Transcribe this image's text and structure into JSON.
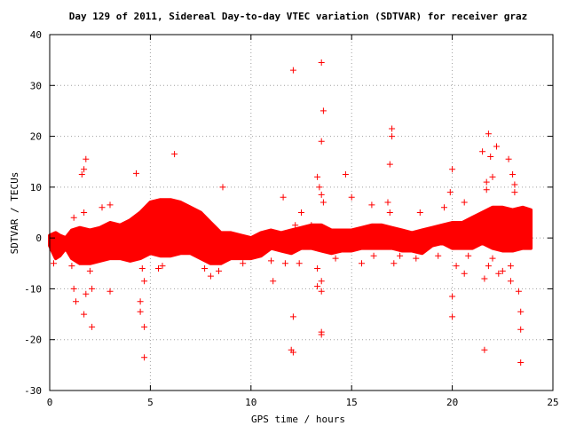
{
  "chart_data": {
    "type": "scatter",
    "title": "Day 129 of 2011, Sidereal Day-to-day VTEC variation (SDTVAR) for receiver graz",
    "xlabel": "GPS time / hours",
    "ylabel": "SDTVAR / TECUs",
    "xlim": [
      0,
      25
    ],
    "ylim": [
      -30,
      40
    ],
    "x_ticks": [
      0,
      5,
      10,
      15,
      20,
      25
    ],
    "y_ticks": [
      -30,
      -20,
      -10,
      0,
      10,
      20,
      30,
      40
    ],
    "grid": true,
    "legend": "none",
    "marker": "+",
    "color": "#ff0000",
    "band": [
      [
        0.0,
        -1.5,
        0.5
      ],
      [
        0.3,
        -4.0,
        1.0
      ],
      [
        0.5,
        -3.5,
        0.5
      ],
      [
        0.8,
        -2.0,
        0.0
      ],
      [
        1.1,
        -4.0,
        1.5
      ],
      [
        1.5,
        -5.0,
        2.0
      ],
      [
        2.0,
        -5.0,
        1.5
      ],
      [
        2.5,
        -4.5,
        2.0
      ],
      [
        3.0,
        -4.0,
        3.0
      ],
      [
        3.5,
        -4.0,
        2.5
      ],
      [
        4.0,
        -4.5,
        3.5
      ],
      [
        4.5,
        -4.0,
        5.0
      ],
      [
        5.0,
        -3.0,
        7.0
      ],
      [
        5.5,
        -3.5,
        7.5
      ],
      [
        6.0,
        -3.5,
        7.5
      ],
      [
        6.5,
        -3.0,
        7.0
      ],
      [
        7.0,
        -3.0,
        6.0
      ],
      [
        7.5,
        -4.0,
        5.0
      ],
      [
        8.0,
        -5.0,
        3.0
      ],
      [
        8.5,
        -5.0,
        1.0
      ],
      [
        9.0,
        -4.0,
        1.0
      ],
      [
        9.5,
        -4.0,
        0.5
      ],
      [
        10.0,
        -4.0,
        0.0
      ],
      [
        10.5,
        -3.5,
        1.0
      ],
      [
        11.0,
        -2.0,
        1.5
      ],
      [
        11.5,
        -2.5,
        1.0
      ],
      [
        12.0,
        -3.0,
        1.5
      ],
      [
        12.5,
        -2.0,
        2.0
      ],
      [
        13.0,
        -2.0,
        2.5
      ],
      [
        13.5,
        -2.5,
        2.5
      ],
      [
        14.0,
        -3.0,
        1.5
      ],
      [
        14.5,
        -2.5,
        1.5
      ],
      [
        15.0,
        -2.5,
        1.5
      ],
      [
        15.5,
        -2.0,
        2.0
      ],
      [
        16.0,
        -2.0,
        2.5
      ],
      [
        16.5,
        -2.0,
        2.5
      ],
      [
        17.0,
        -2.0,
        2.0
      ],
      [
        17.5,
        -2.5,
        1.5
      ],
      [
        18.0,
        -2.5,
        1.0
      ],
      [
        18.5,
        -3.0,
        1.5
      ],
      [
        19.0,
        -1.5,
        2.0
      ],
      [
        19.5,
        -1.0,
        2.5
      ],
      [
        20.0,
        -2.0,
        3.0
      ],
      [
        20.5,
        -2.0,
        3.0
      ],
      [
        21.0,
        -2.0,
        4.0
      ],
      [
        21.5,
        -1.0,
        5.0
      ],
      [
        22.0,
        -2.0,
        6.0
      ],
      [
        22.5,
        -2.5,
        6.0
      ],
      [
        23.0,
        -2.5,
        5.5
      ],
      [
        23.5,
        -2.0,
        6.0
      ],
      [
        23.9,
        -2.0,
        5.5
      ]
    ],
    "dips": [
      [
        0.2,
        -5.0
      ],
      [
        1.1,
        -5.5
      ],
      [
        2.0,
        -6.5
      ],
      [
        4.6,
        -6.0
      ],
      [
        5.4,
        -6.0
      ],
      [
        5.6,
        -5.5
      ],
      [
        7.7,
        -6.0
      ],
      [
        8.4,
        -6.5
      ],
      [
        9.6,
        -5.0
      ],
      [
        11.0,
        -4.5
      ],
      [
        12.4,
        -5.0
      ],
      [
        13.3,
        -6.0
      ],
      [
        14.2,
        -4.0
      ],
      [
        17.4,
        -3.5
      ],
      [
        18.2,
        -4.0
      ],
      [
        19.3,
        -3.5
      ],
      [
        20.8,
        -3.5
      ],
      [
        21.8,
        -5.5
      ],
      [
        22.3,
        -7.0
      ],
      [
        22.5,
        -6.5
      ],
      [
        22.9,
        -5.5
      ]
    ],
    "outliers": [
      [
        1.2,
        -10.0
      ],
      [
        1.3,
        -12.5
      ],
      [
        1.6,
        12.5
      ],
      [
        1.7,
        13.5
      ],
      [
        1.8,
        15.5
      ],
      [
        1.7,
        5.0
      ],
      [
        1.8,
        -11.0
      ],
      [
        1.7,
        -15.0
      ],
      [
        1.2,
        4.0
      ],
      [
        2.1,
        -17.5
      ],
      [
        2.1,
        -10.0
      ],
      [
        2.6,
        6.0
      ],
      [
        3.0,
        -10.5
      ],
      [
        3.0,
        6.5
      ],
      [
        4.3,
        12.7
      ],
      [
        4.5,
        -12.5
      ],
      [
        4.5,
        -14.5
      ],
      [
        4.7,
        -17.5
      ],
      [
        4.7,
        -23.5
      ],
      [
        4.7,
        -8.5
      ],
      [
        6.2,
        16.5
      ],
      [
        8.0,
        -7.5
      ],
      [
        8.6,
        10.0
      ],
      [
        11.1,
        -8.5
      ],
      [
        11.6,
        8.0
      ],
      [
        11.7,
        -5.0
      ],
      [
        12.1,
        33.0
      ],
      [
        12.0,
        -22.0
      ],
      [
        12.1,
        -22.5
      ],
      [
        12.1,
        -15.5
      ],
      [
        12.2,
        2.5
      ],
      [
        12.5,
        5.0
      ],
      [
        13.0,
        2.5
      ],
      [
        13.5,
        34.5
      ],
      [
        13.6,
        25.0
      ],
      [
        13.5,
        19.0
      ],
      [
        13.3,
        12.0
      ],
      [
        13.4,
        10.0
      ],
      [
        13.5,
        8.5
      ],
      [
        13.6,
        7.0
      ],
      [
        13.5,
        -8.5
      ],
      [
        13.3,
        -9.5
      ],
      [
        13.5,
        -10.5
      ],
      [
        13.5,
        -18.5
      ],
      [
        13.5,
        -19.0
      ],
      [
        14.7,
        12.5
      ],
      [
        15.0,
        8.0
      ],
      [
        15.5,
        -5.0
      ],
      [
        16.0,
        6.5
      ],
      [
        16.1,
        -3.5
      ],
      [
        16.9,
        14.5
      ],
      [
        17.0,
        21.5
      ],
      [
        17.0,
        20.0
      ],
      [
        16.8,
        7.0
      ],
      [
        16.9,
        5.0
      ],
      [
        17.1,
        -5.0
      ],
      [
        18.4,
        5.0
      ],
      [
        19.6,
        6.0
      ],
      [
        19.9,
        9.0
      ],
      [
        20.0,
        13.5
      ],
      [
        20.0,
        -11.5
      ],
      [
        20.0,
        -15.5
      ],
      [
        20.2,
        -5.5
      ],
      [
        20.6,
        7.0
      ],
      [
        20.6,
        -7.0
      ],
      [
        21.5,
        17.0
      ],
      [
        21.6,
        -22.0
      ],
      [
        21.6,
        -8.0
      ],
      [
        21.7,
        11.0
      ],
      [
        21.7,
        9.5
      ],
      [
        21.8,
        20.5
      ],
      [
        21.9,
        16.0
      ],
      [
        22.0,
        12.0
      ],
      [
        22.2,
        18.0
      ],
      [
        22.0,
        -4.0
      ],
      [
        22.8,
        15.5
      ],
      [
        23.0,
        12.5
      ],
      [
        23.1,
        10.5
      ],
      [
        23.1,
        9.0
      ],
      [
        22.9,
        -8.5
      ],
      [
        23.3,
        -10.5
      ],
      [
        23.4,
        -14.5
      ],
      [
        23.4,
        -18.0
      ],
      [
        23.4,
        -24.5
      ],
      [
        23.6,
        5.0
      ]
    ]
  }
}
